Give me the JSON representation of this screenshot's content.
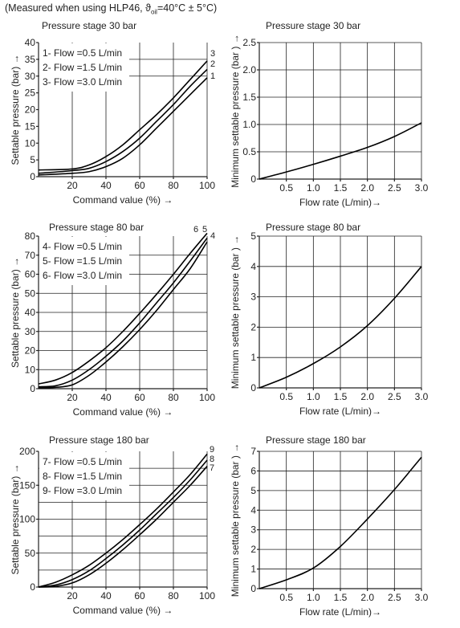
{
  "header": {
    "prefix": "(Measured when using HLP46, ",
    "theta": "ϑ",
    "sub": "oil",
    "suffix": "=40°C ± 5°C)"
  },
  "chart_data": [
    {
      "id": "c30a",
      "type": "line",
      "title": "Pressure stage 30 bar",
      "xlabel": "Command value (%)  →",
      "ylabel": "Settable pressure (bar) →",
      "xlim": [
        0,
        100
      ],
      "ylim": [
        0,
        40
      ],
      "xticks": [
        20,
        40,
        60,
        80,
        100
      ],
      "xtick_labels": [
        "20",
        "40",
        "60",
        "80",
        "100"
      ],
      "yticks": [
        0,
        5,
        10,
        15,
        20,
        25,
        30,
        35,
        40
      ],
      "ytick_labels": [
        "0",
        "5",
        "10",
        "15",
        "20",
        "25",
        "30",
        "35",
        "40"
      ],
      "vgrid": [
        20,
        40,
        60,
        80,
        100
      ],
      "hgrid": [
        30,
        35
      ],
      "grid": true,
      "legend": {
        "placement": "top-left",
        "entries": [
          "1- Flow =0.5 L/min",
          "2- Flow =1.5 L/min",
          "3- Flow =3.0 L/min"
        ]
      },
      "series": [
        {
          "name": "1",
          "x": [
            0,
            20,
            30,
            40,
            50,
            60,
            70,
            80,
            90,
            100
          ],
          "y": [
            0.5,
            1.0,
            1.5,
            3.0,
            5.5,
            9.5,
            14.5,
            19.5,
            24.5,
            29.5
          ]
        },
        {
          "name": "2",
          "x": [
            0,
            20,
            30,
            40,
            50,
            60,
            70,
            80,
            90,
            100
          ],
          "y": [
            1.0,
            1.8,
            2.5,
            4.5,
            7.5,
            11.5,
            16.5,
            21.5,
            27.0,
            32.0
          ]
        },
        {
          "name": "3",
          "x": [
            0,
            20,
            30,
            40,
            50,
            60,
            70,
            80,
            90,
            100
          ],
          "y": [
            2.0,
            2.3,
            3.5,
            6.0,
            9.5,
            14.0,
            18.5,
            23.5,
            29.0,
            34.5
          ]
        }
      ]
    },
    {
      "id": "c30b",
      "type": "line",
      "title": "Pressure stage 30 bar",
      "xlabel": "Flow rate (L/min)→",
      "ylabel": "Minimum settable pressure (bar ) →",
      "xlim": [
        0,
        3
      ],
      "ylim": [
        0,
        2.5
      ],
      "xticks": [
        0.5,
        1.0,
        1.5,
        2.0,
        2.5,
        3.0
      ],
      "xtick_labels": [
        "0.5",
        "1.0",
        "1.5",
        "2.0",
        "2.5",
        "3.0"
      ],
      "yticks": [
        0,
        0.5,
        1.0,
        1.5,
        2.0,
        2.5
      ],
      "ytick_labels": [
        "0",
        "0.5",
        "1.0",
        "1.5",
        "2.0",
        "2.5"
      ],
      "vgrid": [
        0.5,
        1.0,
        1.5,
        2.0,
        2.5,
        3.0
      ],
      "hgrid": [
        0.5,
        1.0,
        1.5,
        2.0,
        2.5
      ],
      "grid": true,
      "series": [
        {
          "name": "",
          "x": [
            0,
            0.5,
            1.0,
            1.5,
            2.0,
            2.5,
            3.0
          ],
          "y": [
            0,
            0.13,
            0.27,
            0.42,
            0.58,
            0.78,
            1.03
          ]
        }
      ]
    },
    {
      "id": "c80a",
      "type": "line",
      "title": "Pressure stage 80 bar",
      "xlabel": "Command value (%)  →",
      "ylabel": "Settable pressure (bar) →",
      "xlim": [
        0,
        100
      ],
      "ylim": [
        0,
        80
      ],
      "xticks": [
        20,
        40,
        60,
        80,
        100
      ],
      "xtick_labels": [
        "20",
        "40",
        "60",
        "80",
        "100"
      ],
      "yticks": [
        0,
        10,
        20,
        30,
        40,
        50,
        60,
        70,
        80
      ],
      "ytick_labels": [
        "0",
        "10",
        "20",
        "30",
        "40",
        "50",
        "60",
        "70",
        "80"
      ],
      "vgrid": [
        20,
        40,
        60,
        80,
        100
      ],
      "hgrid": [
        10,
        20,
        30,
        40,
        50,
        60,
        70
      ],
      "grid": true,
      "legend": {
        "placement": "top-left",
        "entries": [
          "4- Flow =0.5 L/min",
          "5- Flow =1.5 L/min",
          "6- Flow =3.0 L/min"
        ]
      },
      "series": [
        {
          "name": "4",
          "x": [
            0,
            10,
            20,
            30,
            40,
            50,
            60,
            70,
            80,
            90,
            100
          ],
          "y": [
            0.5,
            0.7,
            2.0,
            7.0,
            14.0,
            22.0,
            31.0,
            41.0,
            52.0,
            63.0,
            77.0
          ]
        },
        {
          "name": "5",
          "x": [
            0,
            10,
            20,
            30,
            40,
            50,
            60,
            70,
            80,
            90,
            100
          ],
          "y": [
            1.0,
            1.5,
            4.5,
            10.0,
            17.0,
            25.0,
            34.5,
            45.0,
            55.5,
            67.0,
            79.0
          ]
        },
        {
          "name": "6",
          "x": [
            0,
            10,
            20,
            30,
            40,
            50,
            60,
            70,
            80,
            90,
            100
          ],
          "y": [
            2.5,
            4.5,
            8.5,
            14.5,
            21.5,
            30.0,
            39.5,
            49.5,
            60.0,
            71.0,
            81.5
          ]
        }
      ]
    },
    {
      "id": "c80b",
      "type": "line",
      "title": "Pressure stage 80 bar",
      "xlabel": "Flow rate (L/min)→",
      "ylabel": "Minimum settable pressure (bar ) →",
      "xlim": [
        0,
        3
      ],
      "ylim": [
        0,
        5
      ],
      "xticks": [
        0.5,
        1.0,
        1.5,
        2.0,
        2.5,
        3.0
      ],
      "xtick_labels": [
        "0.5",
        "1.0",
        "1.5",
        "2.0",
        "2.5",
        "3.0"
      ],
      "yticks": [
        0,
        1,
        2,
        3,
        4,
        5
      ],
      "ytick_labels": [
        "0",
        "1",
        "2",
        "3",
        "4",
        "5"
      ],
      "vgrid": [
        0.5,
        1.0,
        1.5,
        2.0,
        2.5,
        3.0
      ],
      "hgrid": [
        1,
        2,
        3,
        4,
        5
      ],
      "grid": true,
      "series": [
        {
          "name": "",
          "x": [
            0,
            0.5,
            1.0,
            1.5,
            2.0,
            2.5,
            3.0
          ],
          "y": [
            0,
            0.35,
            0.8,
            1.35,
            2.05,
            2.95,
            4.0
          ]
        }
      ]
    },
    {
      "id": "c180a",
      "type": "line",
      "title": "Pressure stage 180 bar",
      "xlabel": "Command value (%)  →",
      "ylabel": "Settable pressure (bar) →",
      "xlim": [
        0,
        100
      ],
      "ylim": [
        0,
        200
      ],
      "xticks": [
        20,
        40,
        60,
        80,
        100
      ],
      "xtick_labels": [
        "20",
        "40",
        "60",
        "80",
        "100"
      ],
      "yticks": [
        0,
        50,
        100,
        150,
        200
      ],
      "ytick_labels": [
        "0",
        "50",
        "100",
        "150",
        "200"
      ],
      "vgrid": [
        20,
        40,
        60,
        80,
        100
      ],
      "hgrid": [
        25,
        50,
        75,
        100,
        125,
        150,
        175
      ],
      "grid": true,
      "legend": {
        "placement": "top-left",
        "entries": [
          "7- Flow =0.5 L/min",
          "8- Flow =1.5 L/min",
          "9- Flow =3.0 L/min"
        ]
      },
      "series": [
        {
          "name": "7",
          "x": [
            0,
            10,
            20,
            30,
            40,
            50,
            60,
            70,
            80,
            90,
            100
          ],
          "y": [
            0,
            1,
            6,
            18,
            35,
            55,
            77,
            100,
            125,
            150,
            178
          ]
        },
        {
          "name": "8",
          "x": [
            0,
            10,
            20,
            30,
            40,
            50,
            60,
            70,
            80,
            90,
            100
          ],
          "y": [
            0,
            3,
            11,
            24,
            42,
            62,
            84,
            108,
            132,
            158,
            187
          ]
        },
        {
          "name": "9",
          "x": [
            0,
            10,
            20,
            30,
            40,
            50,
            60,
            70,
            80,
            90,
            100
          ],
          "y": [
            0,
            7,
            18,
            32,
            50,
            70,
            92,
            115,
            140,
            166,
            196
          ]
        }
      ]
    },
    {
      "id": "c180b",
      "type": "line",
      "title": "Pressure stage 180 bar",
      "xlabel": "Flow rate (L/min)→",
      "ylabel": "Minimum settable pressure (bar ) →",
      "xlim": [
        0,
        3
      ],
      "ylim": [
        0,
        7
      ],
      "xticks": [
        0.5,
        1.0,
        1.5,
        2.0,
        2.5,
        3.0
      ],
      "xtick_labels": [
        "0.5",
        "1.0",
        "1.5",
        "2.0",
        "2.5",
        "3.0"
      ],
      "yticks": [
        0,
        1,
        2,
        3,
        4,
        5,
        6,
        7
      ],
      "ytick_labels": [
        "0",
        "1",
        "2",
        "3",
        "4",
        "5",
        "6",
        "7"
      ],
      "vgrid": [
        0.5,
        1.0,
        1.5,
        2.0,
        2.5,
        3.0
      ],
      "hgrid": [
        1,
        2,
        3,
        4,
        5,
        6,
        7
      ],
      "grid": true,
      "series": [
        {
          "name": "",
          "x": [
            0,
            0.5,
            1.0,
            1.5,
            2.0,
            2.5,
            3.0
          ],
          "y": [
            0,
            0.45,
            1.05,
            2.15,
            3.55,
            5.05,
            6.7
          ]
        }
      ]
    }
  ]
}
